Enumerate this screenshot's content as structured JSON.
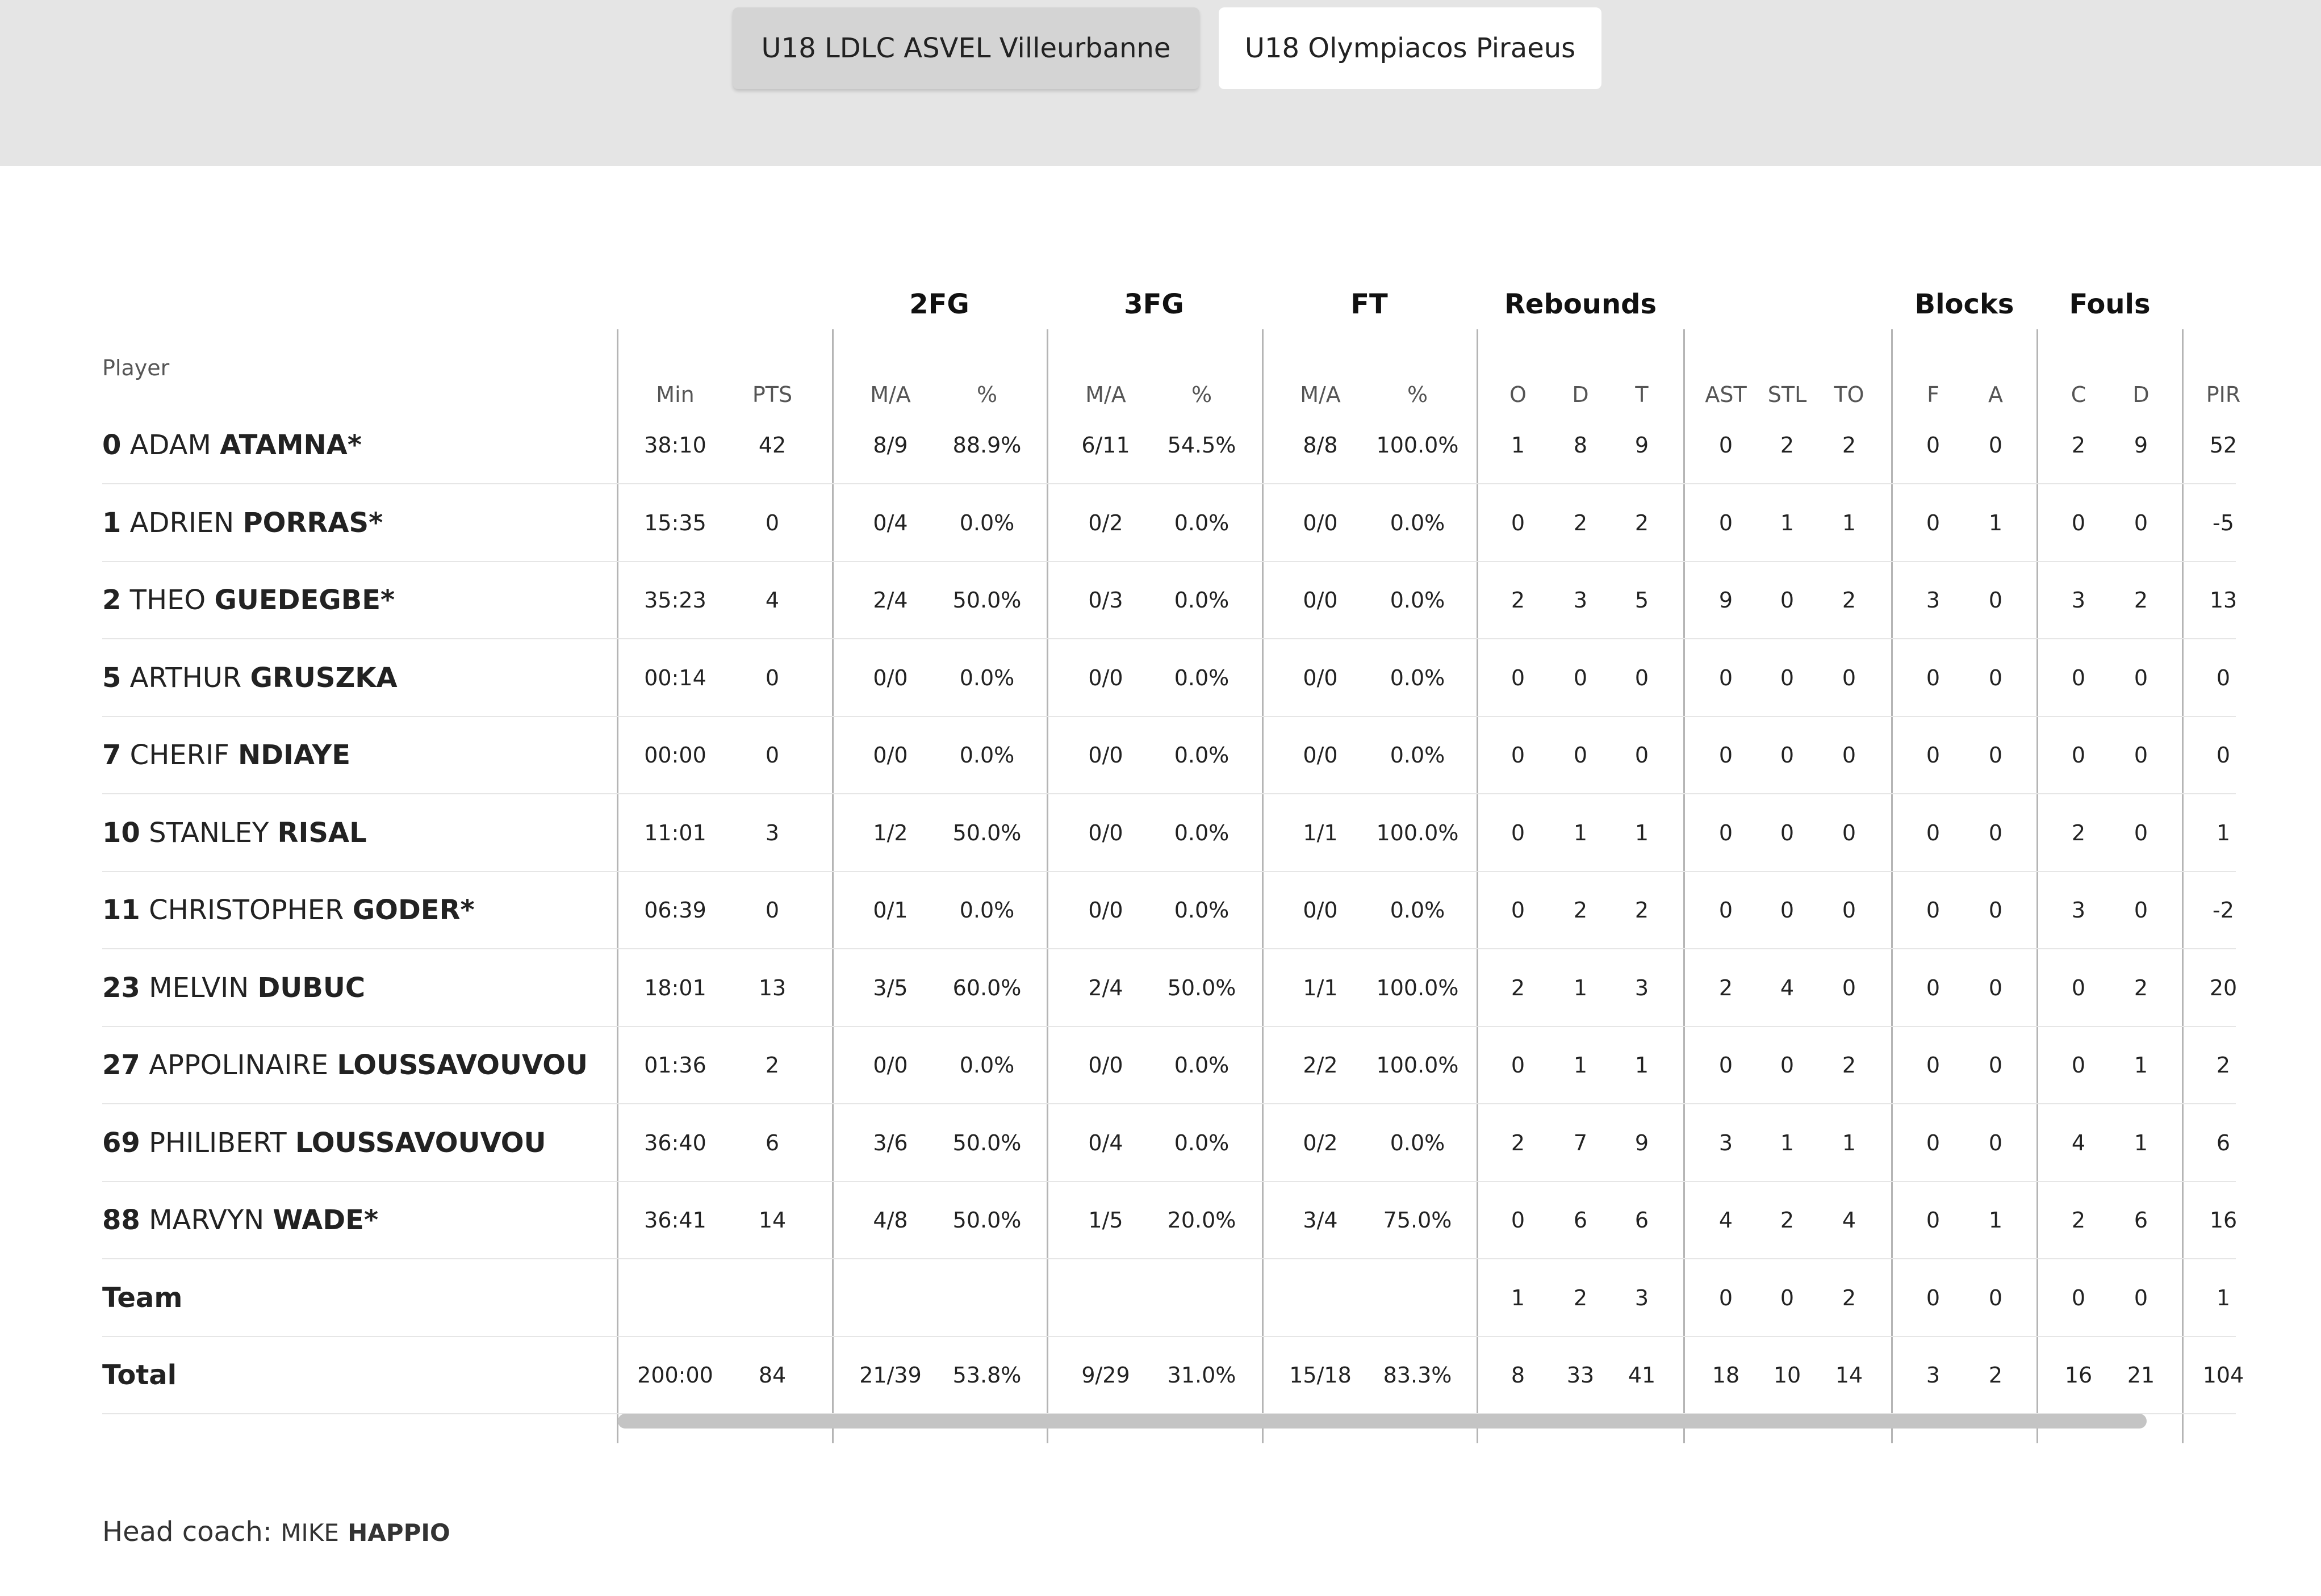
{
  "tabs": [
    {
      "label": "U18 LDLC ASVEL Villeurbanne",
      "active": true
    },
    {
      "label": "U18 Olympiacos Piraeus",
      "active": false
    }
  ],
  "table": {
    "player_header": "Player",
    "groups": [
      "2FG",
      "3FG",
      "FT",
      "Rebounds",
      "Blocks",
      "Fouls"
    ],
    "subheaders": [
      "Min",
      "PTS",
      "M/A",
      "%",
      "M/A",
      "%",
      "M/A",
      "%",
      "O",
      "D",
      "T",
      "AST",
      "STL",
      "TO",
      "F",
      "A",
      "C",
      "D",
      "PIR"
    ],
    "players": [
      {
        "num": "0",
        "first": "ADAM",
        "last": "ATAMNA*",
        "stats": [
          "38:10",
          "42",
          "8/9",
          "88.9%",
          "6/11",
          "54.5%",
          "8/8",
          "100.0%",
          "1",
          "8",
          "9",
          "0",
          "2",
          "2",
          "0",
          "0",
          "2",
          "9",
          "52"
        ]
      },
      {
        "num": "1",
        "first": "ADRIEN",
        "last": "PORRAS*",
        "stats": [
          "15:35",
          "0",
          "0/4",
          "0.0%",
          "0/2",
          "0.0%",
          "0/0",
          "0.0%",
          "0",
          "2",
          "2",
          "0",
          "1",
          "1",
          "0",
          "1",
          "0",
          "0",
          "-5"
        ]
      },
      {
        "num": "2",
        "first": "THEO",
        "last": "GUEDEGBE*",
        "stats": [
          "35:23",
          "4",
          "2/4",
          "50.0%",
          "0/3",
          "0.0%",
          "0/0",
          "0.0%",
          "2",
          "3",
          "5",
          "9",
          "0",
          "2",
          "3",
          "0",
          "3",
          "2",
          "13"
        ]
      },
      {
        "num": "5",
        "first": "ARTHUR",
        "last": "GRUSZKA",
        "stats": [
          "00:14",
          "0",
          "0/0",
          "0.0%",
          "0/0",
          "0.0%",
          "0/0",
          "0.0%",
          "0",
          "0",
          "0",
          "0",
          "0",
          "0",
          "0",
          "0",
          "0",
          "0",
          "0"
        ]
      },
      {
        "num": "7",
        "first": "CHERIF",
        "last": "NDIAYE",
        "stats": [
          "00:00",
          "0",
          "0/0",
          "0.0%",
          "0/0",
          "0.0%",
          "0/0",
          "0.0%",
          "0",
          "0",
          "0",
          "0",
          "0",
          "0",
          "0",
          "0",
          "0",
          "0",
          "0"
        ]
      },
      {
        "num": "10",
        "first": "STANLEY",
        "last": "RISAL",
        "stats": [
          "11:01",
          "3",
          "1/2",
          "50.0%",
          "0/0",
          "0.0%",
          "1/1",
          "100.0%",
          "0",
          "1",
          "1",
          "0",
          "0",
          "0",
          "0",
          "0",
          "2",
          "0",
          "1"
        ]
      },
      {
        "num": "11",
        "first": "CHRISTOPHER",
        "last": "GODER*",
        "stats": [
          "06:39",
          "0",
          "0/1",
          "0.0%",
          "0/0",
          "0.0%",
          "0/0",
          "0.0%",
          "0",
          "2",
          "2",
          "0",
          "0",
          "0",
          "0",
          "0",
          "3",
          "0",
          "-2"
        ]
      },
      {
        "num": "23",
        "first": "MELVIN",
        "last": "DUBUC",
        "stats": [
          "18:01",
          "13",
          "3/5",
          "60.0%",
          "2/4",
          "50.0%",
          "1/1",
          "100.0%",
          "2",
          "1",
          "3",
          "2",
          "4",
          "0",
          "0",
          "0",
          "0",
          "2",
          "20"
        ]
      },
      {
        "num": "27",
        "first": "APPOLINAIRE",
        "last": "LOUSSAVOUVOU",
        "stats": [
          "01:36",
          "2",
          "0/0",
          "0.0%",
          "0/0",
          "0.0%",
          "2/2",
          "100.0%",
          "0",
          "1",
          "1",
          "0",
          "0",
          "2",
          "0",
          "0",
          "0",
          "1",
          "2"
        ]
      },
      {
        "num": "69",
        "first": "PHILIBERT",
        "last": "LOUSSAVOUVOU",
        "stats": [
          "36:40",
          "6",
          "3/6",
          "50.0%",
          "0/4",
          "0.0%",
          "0/2",
          "0.0%",
          "2",
          "7",
          "9",
          "3",
          "1",
          "1",
          "0",
          "0",
          "4",
          "1",
          "6"
        ]
      },
      {
        "num": "88",
        "first": "MARVYN",
        "last": "WADE*",
        "stats": [
          "36:41",
          "14",
          "4/8",
          "50.0%",
          "1/5",
          "20.0%",
          "3/4",
          "75.0%",
          "0",
          "6",
          "6",
          "4",
          "2",
          "4",
          "0",
          "1",
          "2",
          "6",
          "16"
        ]
      }
    ],
    "team_row": {
      "label": "Team",
      "stats": [
        "",
        "",
        "",
        "",
        "",
        "",
        "",
        "",
        "1",
        "2",
        "3",
        "0",
        "0",
        "2",
        "0",
        "0",
        "0",
        "0",
        "1"
      ]
    },
    "total_row": {
      "label": "Total",
      "stats": [
        "200:00",
        "84",
        "21/39",
        "53.8%",
        "9/29",
        "31.0%",
        "15/18",
        "83.3%",
        "8",
        "33",
        "41",
        "18",
        "10",
        "14",
        "3",
        "2",
        "16",
        "21",
        "104"
      ]
    }
  },
  "coach": {
    "prefix": "Head coach:",
    "first": "MIKE",
    "last": "HAPPIO"
  }
}
